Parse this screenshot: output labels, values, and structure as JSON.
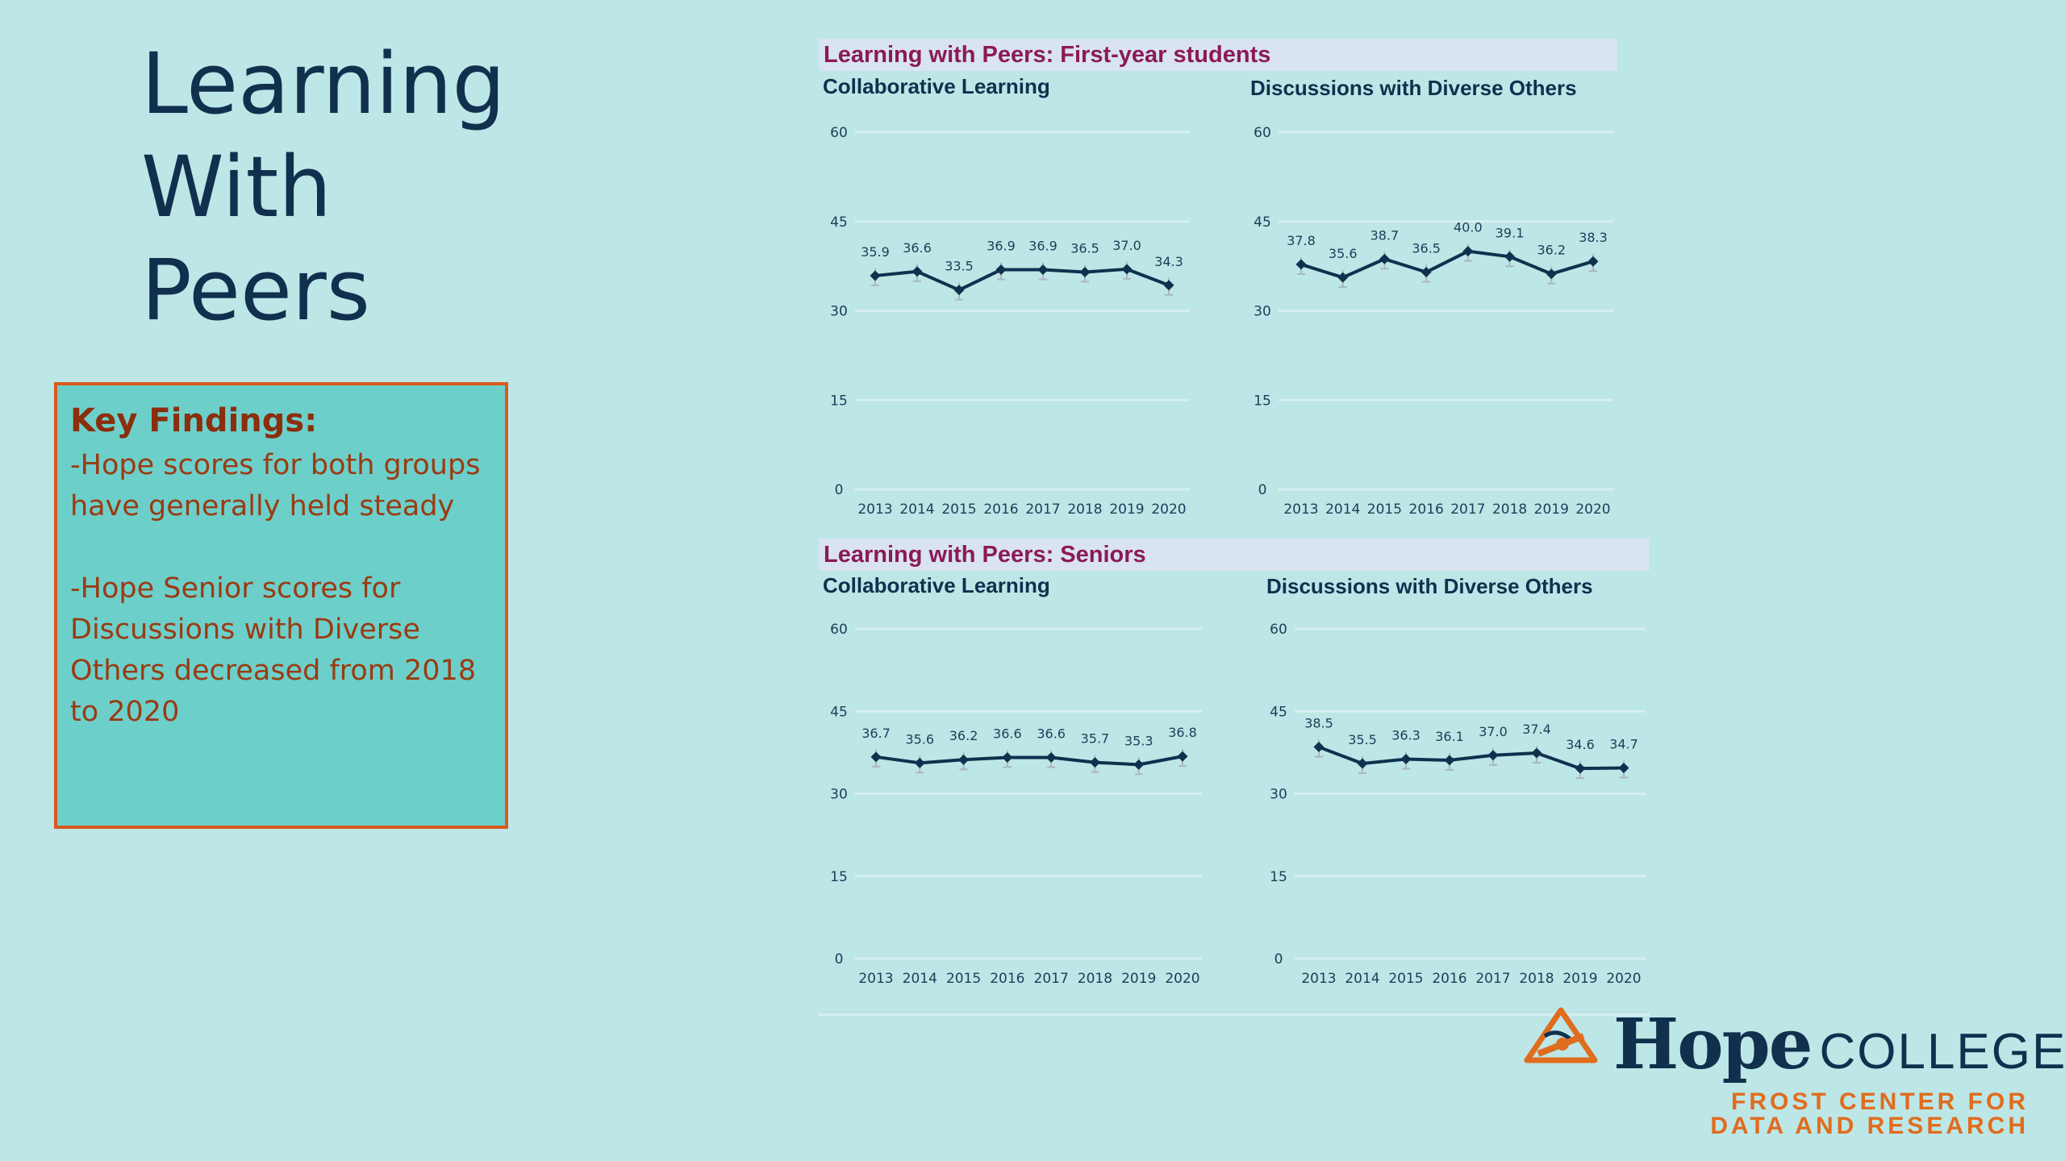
{
  "slide": {
    "title_lines": [
      "Learning",
      "With",
      "Peers"
    ]
  },
  "findings": {
    "heading": "Key Findings:",
    "item1_lines": [
      "-Hope scores for both groups",
      "have generally held steady"
    ],
    "item2_lines": [
      "-Hope Senior scores for",
      "Discussions with Diverse",
      "Others decreased from 2018",
      "to 2020"
    ]
  },
  "panels": [
    {
      "header": "Learning with Peers: First-year students"
    },
    {
      "header": "Learning with Peers: Seniors"
    }
  ],
  "chart_data": [
    {
      "type": "line",
      "group": "Learning with Peers: First-year students",
      "title": "Collaborative Learning",
      "x": [
        "2013",
        "2014",
        "2015",
        "2016",
        "2017",
        "2018",
        "2019",
        "2020"
      ],
      "values": [
        35.9,
        36.6,
        33.5,
        36.9,
        36.9,
        36.5,
        37.0,
        34.3
      ],
      "ylim": [
        0,
        60
      ],
      "yticks": [
        0,
        15,
        30,
        45,
        60
      ],
      "grid": true
    },
    {
      "type": "line",
      "group": "Learning with Peers: First-year students",
      "title": "Discussions with Diverse Others",
      "x": [
        "2013",
        "2014",
        "2015",
        "2016",
        "2017",
        "2018",
        "2019",
        "2020"
      ],
      "values": [
        37.8,
        35.6,
        38.7,
        36.5,
        40.0,
        39.1,
        36.2,
        38.3
      ],
      "ylim": [
        0,
        60
      ],
      "yticks": [
        0,
        15,
        30,
        45,
        60
      ],
      "grid": true
    },
    {
      "type": "line",
      "group": "Learning with Peers: Seniors",
      "title": "Collaborative Learning",
      "x": [
        "2013",
        "2014",
        "2015",
        "2016",
        "2017",
        "2018",
        "2019",
        "2020"
      ],
      "values": [
        36.7,
        35.6,
        36.2,
        36.6,
        36.6,
        35.7,
        35.3,
        36.8
      ],
      "ylim": [
        0,
        60
      ],
      "yticks": [
        0,
        15,
        30,
        45,
        60
      ],
      "grid": true
    },
    {
      "type": "line",
      "group": "Learning with Peers: Seniors",
      "title": "Discussions with Diverse Others",
      "x": [
        "2013",
        "2014",
        "2015",
        "2016",
        "2017",
        "2018",
        "2019",
        "2020"
      ],
      "values": [
        38.5,
        35.5,
        36.3,
        36.1,
        37.0,
        37.4,
        34.6,
        34.7
      ],
      "ylim": [
        0,
        60
      ],
      "yticks": [
        0,
        15,
        30,
        45,
        60
      ],
      "grid": true
    }
  ],
  "branding": {
    "hope": "Hope",
    "college": "COLLEGE",
    "center_lines": [
      "FROST CENTER FOR",
      "DATA AND RESEARCH"
    ]
  },
  "colors": {
    "line": "#10304e",
    "error_bar": "#a9b6c2",
    "accent": "#e06c1e"
  }
}
